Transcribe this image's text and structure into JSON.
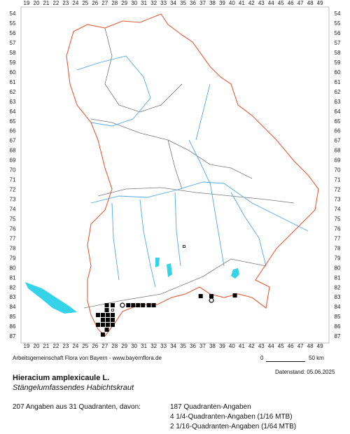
{
  "map": {
    "x_labels": [
      19,
      20,
      21,
      22,
      23,
      24,
      25,
      26,
      27,
      28,
      29,
      30,
      31,
      32,
      33,
      34,
      35,
      36,
      37,
      38,
      39,
      40,
      41,
      42,
      43,
      44,
      45,
      46,
      47,
      48,
      49
    ],
    "y_labels": [
      54,
      55,
      56,
      57,
      58,
      59,
      60,
      61,
      62,
      63,
      64,
      65,
      66,
      67,
      68,
      69,
      70,
      71,
      72,
      73,
      74,
      75,
      76,
      77,
      78,
      79,
      80,
      81,
      82,
      83,
      84,
      85,
      86,
      87
    ],
    "markers": {
      "squares": [
        [
          27.2,
          83.78
        ],
        [
          27.8,
          83.78
        ],
        [
          29.4,
          83.78
        ],
        [
          29.9,
          83.78
        ],
        [
          30.4,
          83.78
        ],
        [
          30.9,
          83.78
        ],
        [
          31.5,
          83.78
        ],
        [
          32.0,
          83.78
        ],
        [
          27.2,
          84.28
        ],
        [
          26.3,
          84.78
        ],
        [
          26.8,
          84.78
        ],
        [
          27.3,
          84.78
        ],
        [
          27.8,
          84.78
        ],
        [
          26.8,
          85.28
        ],
        [
          27.3,
          85.28
        ],
        [
          27.8,
          85.28
        ],
        [
          26.3,
          85.78
        ],
        [
          26.8,
          85.78
        ],
        [
          27.3,
          85.78
        ],
        [
          27.8,
          85.78
        ],
        [
          27.2,
          86.28
        ],
        [
          26.8,
          86.78
        ],
        [
          36.8,
          82.85
        ],
        [
          37.9,
          82.85
        ],
        [
          40.3,
          82.78
        ]
      ],
      "circles": [
        [
          28.8,
          83.78
        ],
        [
          37.9,
          83.28
        ]
      ],
      "dots": [
        [
          27.8,
          84.28
        ],
        [
          35.1,
          77.77
        ]
      ]
    }
  },
  "footer": {
    "credit": "Arbeitsgemeinschaft Flora von Bayern - www.bayernflora.de",
    "date": "Datenstand: 05.06.2025",
    "scale_start": "0",
    "scale_end": "50 km",
    "species": "Hieracium amplexicaule L.",
    "common_name": "Stängelumfassendes Habichtskraut",
    "summary": "207 Angaben aus 31 Quadranten, davon:",
    "details": [
      "187 Quadranten-Angaben",
      "4 1/4-Quadranten-Angaben (1/16 MTB)",
      "2 1/16-Quadranten-Angaben (1/64 MTB)"
    ]
  }
}
